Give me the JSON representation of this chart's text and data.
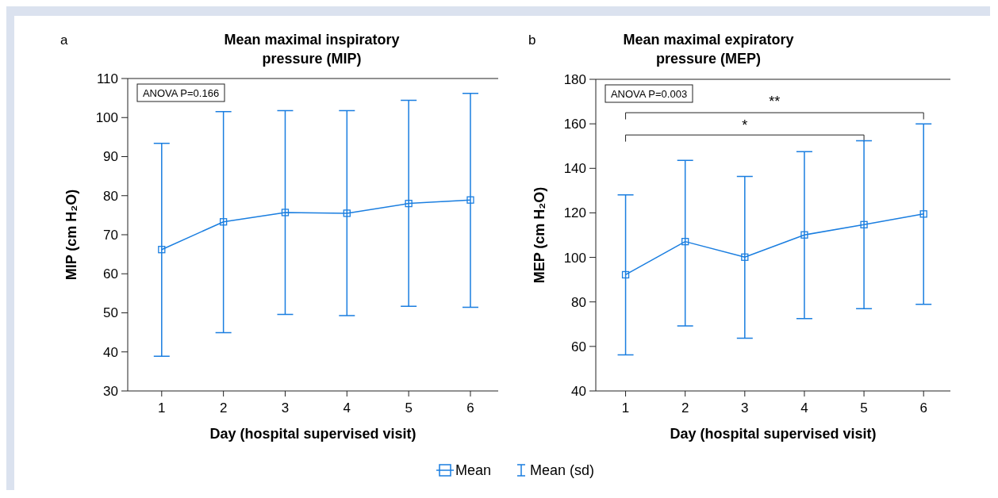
{
  "chart_data": [
    {
      "type": "line",
      "title": "Mean maximal inspiratory pressure (MIP)",
      "xlabel": "Day (hospital supervised visit)",
      "ylabel": "MIP (cm H₂O)",
      "x": [
        1,
        2,
        3,
        4,
        5,
        6
      ],
      "xlim": [
        0.45,
        6.45
      ],
      "xticks": [
        1,
        2,
        3,
        4,
        5,
        6
      ],
      "ylim": [
        30,
        110
      ],
      "yticks": [
        30,
        40,
        50,
        60,
        70,
        80,
        90,
        100,
        110
      ],
      "marker": "square",
      "grid": false,
      "series": [
        {
          "color": "#1a7ee0",
          "values": [
            66.2,
            73.3,
            75.7,
            75.5,
            78.0,
            78.9
          ],
          "errors": [
            [
              38.9,
              93.4
            ],
            [
              44.9,
              101.5
            ],
            [
              49.6,
              101.8
            ],
            [
              49.3,
              101.8
            ],
            [
              51.7,
              104.4
            ],
            [
              51.4,
              106.2
            ]
          ]
        }
      ],
      "annotations": [
        "a",
        "ANOVA P=0.166"
      ]
    },
    {
      "type": "line",
      "title": "Mean maximal expiratory pressure (MEP)",
      "xlabel": "Day (hospital supervised visit)",
      "ylabel": "MEP (cm H₂O)",
      "x": [
        1,
        2,
        3,
        4,
        5,
        6
      ],
      "xlim": [
        0.5,
        6.45
      ],
      "xticks": [
        1,
        2,
        3,
        4,
        5,
        6
      ],
      "ylim": [
        40,
        180
      ],
      "yticks": [
        40,
        60,
        80,
        100,
        120,
        140,
        160,
        180
      ],
      "marker": "square",
      "legend": "bottom",
      "grid": false,
      "series": [
        {
          "name": "Mean",
          "color": "#1a7ee0",
          "values": [
            92.2,
            107.1,
            100.1,
            110.1,
            114.7,
            119.5
          ],
          "errors": [
            [
              56.2,
              128.1
            ],
            [
              69.2,
              143.6
            ],
            [
              63.7,
              136.4
            ],
            [
              72.5,
              147.5
            ],
            [
              77.0,
              152.4
            ],
            [
              78.9,
              160.0
            ]
          ]
        }
      ],
      "annotations": [
        "b",
        "ANOVA P=0.003",
        "*",
        "**",
        "Mean (sd)"
      ]
    }
  ]
}
